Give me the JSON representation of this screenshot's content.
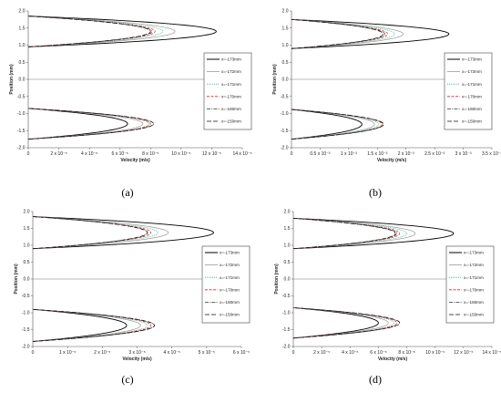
{
  "figure": {
    "panel_labels": [
      "(a)",
      "(b)",
      "(c)",
      "(d)"
    ]
  },
  "chart_data": [
    {
      "type": "line",
      "panel": "(a)",
      "xlabel": "Velocity (m/s)",
      "ylabel": "Position (mm)",
      "xlim": [
        0,
        0.00014
      ],
      "ylim": [
        -2.0,
        2.0
      ],
      "x_ticks": [
        0,
        2e-05,
        4e-05,
        6e-05,
        8e-05,
        0.0001,
        0.00012,
        0.00014
      ],
      "x_tick_labels": [
        "0",
        "2 x 10⁻⁵",
        "4 x 10⁻⁵",
        "6 x 10⁻⁵",
        "8 x 10⁻⁵",
        "10 x 10⁻⁵",
        "12 x 10⁻⁵",
        "14 x 10⁻⁵"
      ],
      "y_ticks": [
        -2.0,
        -1.5,
        -1.0,
        -0.5,
        0.0,
        0.5,
        1.0,
        1.5,
        2.0
      ],
      "y_tick_labels": [
        "-2.0",
        "-1.5",
        "-1.0",
        "-0.5",
        "0.0",
        "0.5",
        "1.0",
        "1.5",
        "2.0"
      ],
      "legend_position": "right",
      "series": [
        {
          "name": "x=-173mm",
          "color": "#000000",
          "dash": "solid",
          "upper_peak": 0.000123,
          "lower_peak": 6.5e-05
        },
        {
          "name": "x=-172mm",
          "color": "#9a9a9a",
          "dash": "solid",
          "upper_peak": 9.6e-05,
          "lower_peak": 7.5e-05
        },
        {
          "name": "x=-171mm",
          "color": "#22b39a",
          "dash": "dotted",
          "upper_peak": 8.8e-05,
          "lower_peak": 7.9e-05
        },
        {
          "name": "x=-170mm",
          "color": "#e02020",
          "dash": "dashed",
          "upper_peak": 8.3e-05,
          "lower_peak": 8e-05
        },
        {
          "name": "x=-160mm",
          "color": "#333333",
          "dash": "dashdot",
          "upper_peak": 8.1e-05,
          "lower_peak": 8.2e-05
        },
        {
          "name": "x=-150mm",
          "color": "#111111",
          "dash": "longdash",
          "upper_peak": 8e-05,
          "lower_peak": 8.2e-05
        }
      ],
      "upper_channel_mm": [
        0.95,
        1.85
      ],
      "lower_channel_mm": [
        -1.75,
        -0.85
      ]
    },
    {
      "type": "line",
      "panel": "(b)",
      "xlabel": "Velocity (m/s)",
      "ylabel": "Position (mm)",
      "xlim": [
        0,
        0.0035
      ],
      "ylim": [
        -2.0,
        2.0
      ],
      "x_ticks": [
        0,
        0.0005,
        0.001,
        0.0015,
        0.002,
        0.0025,
        0.003,
        0.0035
      ],
      "x_tick_labels": [
        "0",
        "0.5 x 10⁻³",
        "1 x 10⁻³",
        "1.5 x 10⁻³",
        "2 x 10⁻³",
        "2.5 x 10⁻³",
        "3 x 10⁻³",
        "3.5 x 10⁻³"
      ],
      "y_ticks": [
        -2.0,
        -1.5,
        -1.0,
        -0.5,
        0.0,
        0.5,
        1.0,
        1.5,
        2.0
      ],
      "y_tick_labels": [
        "-2.0",
        "-1.5",
        "-1.0",
        "-0.5",
        "0.0",
        "0.5",
        "1.0",
        "1.5",
        "2.0"
      ],
      "legend_position": "right",
      "series": [
        {
          "name": "x=-173mm",
          "color": "#000000",
          "dash": "solid",
          "upper_peak": 0.00275,
          "lower_peak": 0.00123
        },
        {
          "name": "x=-172mm",
          "color": "#9a9a9a",
          "dash": "solid",
          "upper_peak": 0.00195,
          "lower_peak": 0.00145
        },
        {
          "name": "x=-171mm",
          "color": "#22b39a",
          "dash": "dotted",
          "upper_peak": 0.0018,
          "lower_peak": 0.00152
        },
        {
          "name": "x=-170mm",
          "color": "#e02020",
          "dash": "dashed",
          "upper_peak": 0.00168,
          "lower_peak": 0.00158
        },
        {
          "name": "x=-160mm",
          "color": "#333333",
          "dash": "dashdot",
          "upper_peak": 0.00163,
          "lower_peak": 0.0016
        },
        {
          "name": "x=-150mm",
          "color": "#111111",
          "dash": "longdash",
          "upper_peak": 0.0016,
          "lower_peak": 0.00161
        }
      ],
      "upper_channel_mm": [
        0.9,
        1.75
      ],
      "lower_channel_mm": [
        -1.75,
        -0.88
      ]
    },
    {
      "type": "line",
      "panel": "(c)",
      "xlabel": "Velocity (m/s)",
      "ylabel": "Position (mm)",
      "xlim": [
        0,
        6e-05
      ],
      "ylim": [
        -2.0,
        2.0
      ],
      "x_ticks": [
        0,
        1e-05,
        2e-05,
        3e-05,
        4e-05,
        5e-05,
        6e-05
      ],
      "x_tick_labels": [
        "0",
        "1 x 10⁻⁵",
        "2 x 10⁻⁵",
        "3 x 10⁻⁵",
        "4 x 10⁻⁵",
        "5 x 10⁻⁵",
        "6 x 10⁻⁵"
      ],
      "y_ticks": [
        -2.0,
        -1.5,
        -1.0,
        -0.5,
        0.0,
        0.5,
        1.0,
        1.5,
        2.0
      ],
      "y_tick_labels": [
        "-2.0",
        "-1.5",
        "-1.0",
        "-0.5",
        "0.0",
        "0.5",
        "1.0",
        "1.5",
        "2.0"
      ],
      "legend_position": "right",
      "series": [
        {
          "name": "x=-173mm",
          "color": "#000000",
          "dash": "solid",
          "upper_peak": 5.2e-05,
          "lower_peak": 2.7e-05
        },
        {
          "name": "x=-172mm",
          "color": "#9a9a9a",
          "dash": "solid",
          "upper_peak": 3.9e-05,
          "lower_peak": 3.1e-05
        },
        {
          "name": "x=-171mm",
          "color": "#22b39a",
          "dash": "dotted",
          "upper_peak": 3.6e-05,
          "lower_peak": 3.3e-05
        },
        {
          "name": "x=-170mm",
          "color": "#e02020",
          "dash": "dashed",
          "upper_peak": 3.4e-05,
          "lower_peak": 3.4e-05
        },
        {
          "name": "x=-160mm",
          "color": "#333333",
          "dash": "dashdot",
          "upper_peak": 3.3e-05,
          "lower_peak": 3.5e-05
        },
        {
          "name": "x=-150mm",
          "color": "#111111",
          "dash": "longdash",
          "upper_peak": 3.3e-05,
          "lower_peak": 3.5e-05
        }
      ],
      "upper_channel_mm": [
        0.9,
        1.85
      ],
      "lower_channel_mm": [
        -1.85,
        -0.9
      ]
    },
    {
      "type": "line",
      "panel": "(d)",
      "xlabel": "Velocity (m/s)",
      "ylabel": "Position (mm)",
      "xlim": [
        0,
        0.00014
      ],
      "ylim": [
        -2.0,
        2.0
      ],
      "x_ticks": [
        0,
        2e-05,
        4e-05,
        6e-05,
        8e-05,
        0.0001,
        0.00012,
        0.00014
      ],
      "x_tick_labels": [
        "0",
        "2 x 10⁻⁵",
        "4 x 10⁻⁵",
        "6 x 10⁻⁵",
        "8 x 10⁻⁵",
        "10 x 10⁻⁵",
        "12 x 10⁻⁵",
        "14 x 10⁻⁵"
      ],
      "y_ticks": [
        -2.0,
        -1.5,
        -1.0,
        -0.5,
        0.0,
        0.5,
        1.0,
        1.5,
        2.0
      ],
      "y_tick_labels": [
        "-2.0",
        "-1.5",
        "-1.0",
        "-0.5",
        "0.0",
        "0.5",
        "1.0",
        "1.5",
        "2.0"
      ],
      "legend_position": "right",
      "series": [
        {
          "name": "x=-173mm",
          "color": "#000000",
          "dash": "solid",
          "upper_peak": 0.000113,
          "lower_peak": 6e-05
        },
        {
          "name": "x=-172mm",
          "color": "#9a9a9a",
          "dash": "solid",
          "upper_peak": 8.6e-05,
          "lower_peak": 6.7e-05
        },
        {
          "name": "x=-171mm",
          "color": "#22b39a",
          "dash": "dotted",
          "upper_peak": 8e-05,
          "lower_peak": 7.1e-05
        },
        {
          "name": "x=-170mm",
          "color": "#e02020",
          "dash": "dashed",
          "upper_peak": 7.5e-05,
          "lower_peak": 7.3e-05
        },
        {
          "name": "x=-160mm",
          "color": "#333333",
          "dash": "dashdot",
          "upper_peak": 7.3e-05,
          "lower_peak": 7.5e-05
        },
        {
          "name": "x=-150mm",
          "color": "#111111",
          "dash": "longdash",
          "upper_peak": 7.2e-05,
          "lower_peak": 7.5e-05
        }
      ],
      "upper_channel_mm": [
        0.9,
        1.8
      ],
      "lower_channel_mm": [
        -1.75,
        -0.85
      ]
    }
  ]
}
